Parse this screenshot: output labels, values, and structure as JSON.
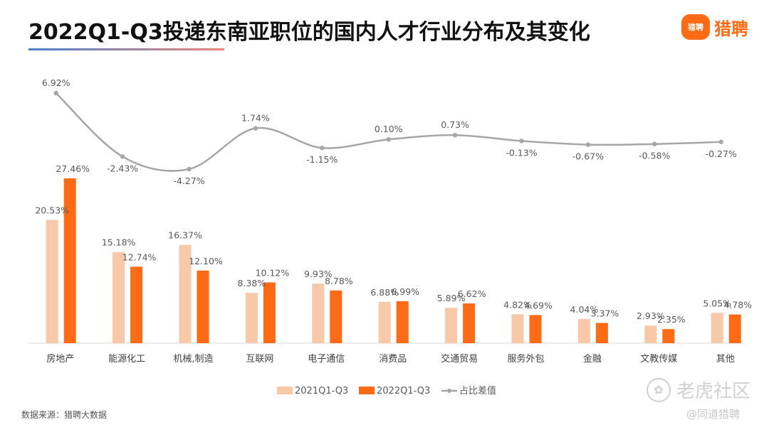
{
  "title": "2022Q1-Q3投递东南亚职位的国内人才行业分布及其变化",
  "logo": {
    "icon_text": "猎聘",
    "text": "猎聘",
    "icon": "liepin-logo-icon"
  },
  "source": "数据来源：猎聘大数据",
  "watermark": {
    "primary": "老虎社区",
    "secondary": "@同道猎聘",
    "icon": "tiger-community-icon"
  },
  "colors": {
    "series1": "#f7c9a9",
    "series2": "#ff6a14",
    "line": "#a6a6a6",
    "text": "#595959"
  },
  "chart_data": {
    "type": "bar",
    "categories": [
      "房地产",
      "能源化工",
      "机械,制造",
      "互联网",
      "电子通信",
      "消费品",
      "交通贸易",
      "服务外包",
      "金融",
      "文教传媒",
      "其他"
    ],
    "series": [
      {
        "name": "2021Q1-Q3",
        "values": [
          20.53,
          15.18,
          16.37,
          8.38,
          9.93,
          6.88,
          5.89,
          4.82,
          4.04,
          2.93,
          5.05
        ],
        "labels": [
          "20.53%",
          "15.18%",
          "16.37%",
          "8.38%",
          "9.93%",
          "6.88%",
          "5.89%",
          "4.82%",
          "4.04%",
          "2.93%",
          "5.05%"
        ]
      },
      {
        "name": "2022Q1-Q3",
        "values": [
          27.46,
          12.74,
          12.1,
          10.12,
          8.78,
          6.99,
          6.62,
          4.69,
          3.37,
          2.35,
          4.78
        ],
        "labels": [
          "27.46%",
          "12.74%",
          "12.10%",
          "10.12%",
          "8.78%",
          "6.99%",
          "6.62%",
          "4.69%",
          "3.37%",
          "2.35%",
          "4.78%"
        ]
      }
    ],
    "line_series": {
      "name": "占比差值",
      "values": [
        6.92,
        -2.43,
        -4.27,
        1.74,
        -1.15,
        0.1,
        0.73,
        -0.13,
        -0.67,
        -0.58,
        -0.27
      ],
      "labels": [
        "6.92%",
        "-2.43%",
        "-4.27%",
        "1.74%",
        "-1.15%",
        "0.10%",
        "0.73%",
        "-0.13%",
        "-0.67%",
        "-0.58%",
        "-0.27%"
      ]
    },
    "legend": [
      "2021Q1-Q3",
      "2022Q1-Q3",
      "占比差值"
    ],
    "legend_position": "bottom",
    "ylim": [
      0,
      30
    ],
    "line_ylim": [
      -5,
      7
    ],
    "xlabel": "",
    "ylabel": "",
    "grid": false
  }
}
